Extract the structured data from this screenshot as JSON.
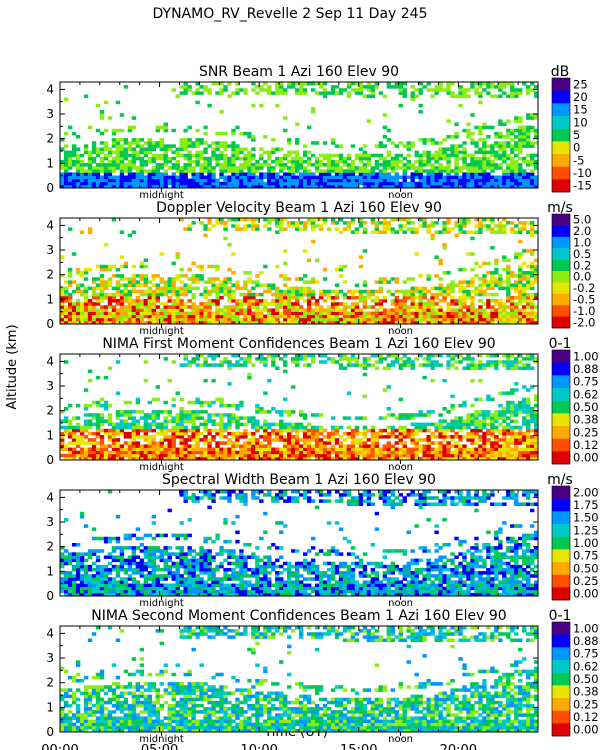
{
  "header": {
    "title": "DYNAMO_RV_Revelle    2 Sep 11 Day 245"
  },
  "y_axis_label": "Altitude (km)",
  "x_axis": {
    "label": "Time (UT)",
    "tick_labels": [
      "00:00",
      "05:00",
      "10:00",
      "15:00",
      "20:00"
    ],
    "tick_hours": [
      0,
      5,
      10,
      15,
      20
    ],
    "range_hours": [
      0,
      24
    ],
    "markers": [
      {
        "label": "midnight",
        "hour": 5.1
      },
      {
        "label": "noon",
        "hour": 17.1
      }
    ]
  },
  "colors": {
    "scale": [
      "#4b0082",
      "#0000ff",
      "#0096ff",
      "#00c8c8",
      "#00c850",
      "#8ced14",
      "#e6e600",
      "#ffaa00",
      "#ff5000",
      "#dc0000"
    ]
  },
  "chart_data": [
    {
      "type": "heatmap",
      "title": "SNR Beam 1 Azi 160 Elev 90",
      "unit": "dB",
      "ylabel": "Altitude (km)",
      "y_ticks": [
        0,
        1,
        2,
        3,
        4
      ],
      "ylim": [
        0,
        4.3
      ],
      "colorbar": [
        "25",
        "20",
        "15",
        "10",
        "5",
        "0",
        "-5",
        "-10",
        "-15"
      ]
    },
    {
      "type": "heatmap",
      "title": "Doppler Velocity Beam 1 Azi 160 Elev 90",
      "unit": "m/s",
      "ylabel": "Altitude (km)",
      "y_ticks": [
        0,
        1,
        2,
        3,
        4
      ],
      "ylim": [
        0,
        4.3
      ],
      "colorbar": [
        "5.0",
        "2.0",
        "1.0",
        "0.5",
        "0.2",
        "0.0",
        "-0.2",
        "-0.5",
        "-1.0",
        "-2.0"
      ]
    },
    {
      "type": "heatmap",
      "title": "NIMA First Moment Confidences Beam 1 Azi 160 Elev 90",
      "unit": "0-1",
      "ylabel": "Altitude (km)",
      "y_ticks": [
        0,
        1,
        2,
        3,
        4
      ],
      "ylim": [
        0,
        4.3
      ],
      "colorbar": [
        "1.00",
        "0.88",
        "0.75",
        "0.62",
        "0.50",
        "0.38",
        "0.25",
        "0.12",
        "0.00"
      ]
    },
    {
      "type": "heatmap",
      "title": "Spectral Width Beam 1 Azi 160 Elev 90",
      "unit": "m/s",
      "ylabel": "Altitude (km)",
      "y_ticks": [
        0,
        1,
        2,
        3,
        4
      ],
      "ylim": [
        0,
        4.3
      ],
      "colorbar": [
        "2.00",
        "1.75",
        "1.50",
        "1.25",
        "1.00",
        "0.75",
        "0.50",
        "0.25",
        "0.00"
      ]
    },
    {
      "type": "heatmap",
      "title": "NIMA Second Moment Confidences Beam 1 Azi 160 Elev 90",
      "unit": "0-1",
      "ylabel": "Altitude (km)",
      "y_ticks": [
        0,
        1,
        2,
        3,
        4
      ],
      "ylim": [
        0,
        4.3
      ],
      "colorbar": [
        "1.00",
        "0.88",
        "0.75",
        "0.62",
        "0.50",
        "0.38",
        "0.25",
        "0.12",
        "0.00"
      ]
    }
  ]
}
